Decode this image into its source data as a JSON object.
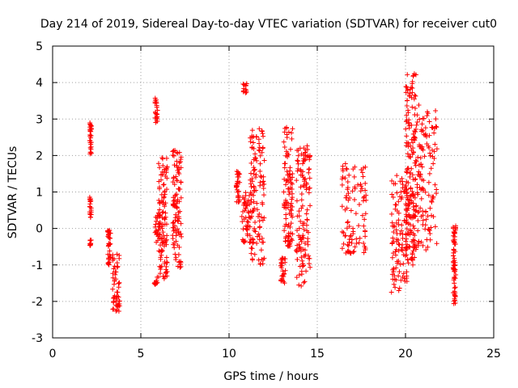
{
  "chart_data": {
    "type": "scatter",
    "title": "Day 214 of 2019, Sidereal Day-to-day VTEC variation (SDTVAR) for receiver cut0",
    "xlabel": "GPS time / hours",
    "ylabel": "SDTVAR / TECUs",
    "xlim": [
      0,
      25
    ],
    "ylim": [
      -3,
      5
    ],
    "xticks": [
      "0",
      "5",
      "10",
      "15",
      "20",
      "25"
    ],
    "yticks": [
      "-3",
      "-2",
      "-1",
      "0",
      "1",
      "2",
      "3",
      "4",
      "5"
    ],
    "grid": true,
    "marker": "plus",
    "color": "#ff0000",
    "clusters": [
      {
        "x": [
          2.1,
          2.2
        ],
        "y": [
          2.0,
          2.95
        ]
      },
      {
        "x": [
          2.1,
          2.2
        ],
        "y": [
          0.3,
          0.9
        ]
      },
      {
        "x": [
          2.1,
          2.2
        ],
        "y": [
          -0.55,
          -0.3
        ]
      },
      {
        "x": [
          3.1,
          3.3
        ],
        "y": [
          -1.1,
          -0.05
        ]
      },
      {
        "x": [
          3.4,
          3.8
        ],
        "y": [
          -2.3,
          -0.7
        ]
      },
      {
        "x": [
          5.8,
          5.95
        ],
        "y": [
          2.9,
          3.6
        ]
      },
      {
        "x": [
          5.75,
          5.95
        ],
        "y": [
          -1.55,
          -1.3
        ]
      },
      {
        "x": [
          5.8,
          6.1
        ],
        "y": [
          -0.4,
          0.4
        ]
      },
      {
        "x": [
          6.0,
          6.5
        ],
        "y": [
          -1.4,
          1.95
        ]
      },
      {
        "x": [
          6.8,
          7.3
        ],
        "y": [
          -1.1,
          2.2
        ]
      },
      {
        "x": [
          10.4,
          10.6
        ],
        "y": [
          0.7,
          1.6
        ]
      },
      {
        "x": [
          10.8,
          11.0
        ],
        "y": [
          3.7,
          4.0
        ]
      },
      {
        "x": [
          10.7,
          11.2
        ],
        "y": [
          -0.4,
          1.0
        ]
      },
      {
        "x": [
          11.2,
          12.0
        ],
        "y": [
          -1.0,
          2.75
        ]
      },
      {
        "x": [
          12.9,
          13.2
        ],
        "y": [
          -1.5,
          -0.8
        ]
      },
      {
        "x": [
          13.1,
          13.6
        ],
        "y": [
          -0.5,
          2.8
        ]
      },
      {
        "x": [
          13.8,
          14.6
        ],
        "y": [
          -1.6,
          2.3
        ]
      },
      {
        "x": [
          16.4,
          17.8
        ],
        "y": [
          -0.7,
          1.8
        ]
      },
      {
        "x": [
          19.2,
          20.1
        ],
        "y": [
          -1.8,
          1.6
        ]
      },
      {
        "x": [
          20.0,
          20.6
        ],
        "y": [
          -1.0,
          4.3
        ]
      },
      {
        "x": [
          20.5,
          21.8
        ],
        "y": [
          -0.6,
          3.4
        ]
      },
      {
        "x": [
          22.7,
          22.85
        ],
        "y": [
          -2.1,
          0.1
        ]
      }
    ]
  }
}
